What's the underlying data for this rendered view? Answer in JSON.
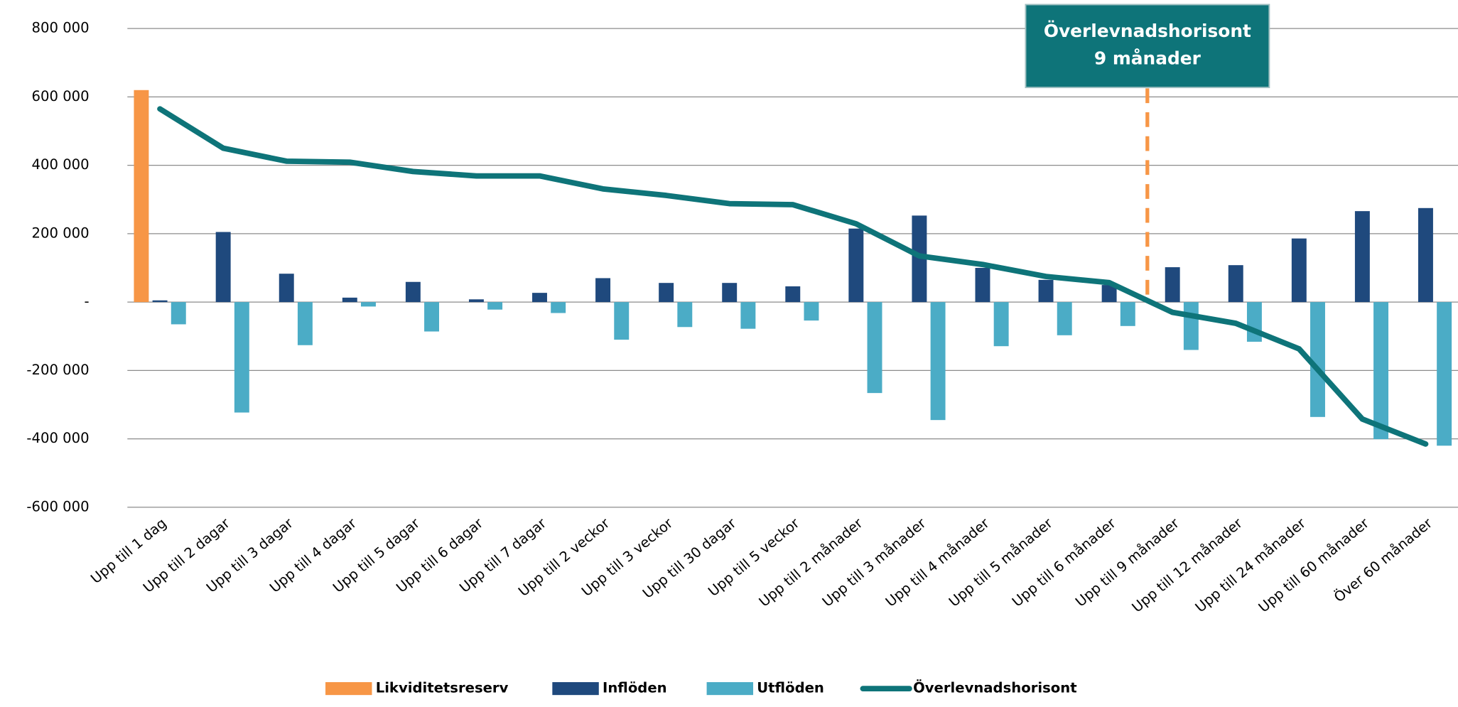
{
  "chart_data": {
    "type": "bar_line",
    "categories": [
      "Upp till 1 dag",
      "Upp till 2 dagar",
      "Upp till 3 dagar",
      "Upp till 4 dagar",
      "Upp till 5 dagar",
      "Upp till 6 dagar",
      "Upp till 7 dagar",
      "Upp till 2 veckor",
      "Upp till 3 veckor",
      "Upp till 30 dagar",
      "Upp till 5 veckor",
      "Upp till 2 månader",
      "Upp till 3 månader",
      "Upp till 4 månader",
      "Upp till 5 månader",
      "Upp till 6 månader",
      "Upp till 9 månader",
      "Upp till 12 månader",
      "Upp till 24 månader",
      "Upp till 60 månader",
      "Över 60 månader"
    ],
    "series": [
      {
        "name": "Likviditetsreserv",
        "type": "bar",
        "color": "#f79646",
        "values": [
          620000,
          null,
          null,
          null,
          null,
          null,
          null,
          null,
          null,
          null,
          null,
          null,
          null,
          null,
          null,
          null,
          null,
          null,
          null,
          null,
          null
        ]
      },
      {
        "name": "Inflöden",
        "type": "bar",
        "color": "#1f497d",
        "values": [
          5000,
          205000,
          83000,
          13000,
          59000,
          8000,
          27000,
          70000,
          56000,
          56000,
          46000,
          215000,
          253000,
          100000,
          65000,
          50000,
          102000,
          108000,
          186000,
          266000,
          275000
        ]
      },
      {
        "name": "Utflöden",
        "type": "bar",
        "color": "#4bacc6",
        "values": [
          -65000,
          -323000,
          -126000,
          -13000,
          -86000,
          -22000,
          -32000,
          -110000,
          -73000,
          -78000,
          -54000,
          -266000,
          -345000,
          -129000,
          -97000,
          -70000,
          -140000,
          -116000,
          -336000,
          -401000,
          -420000
        ]
      },
      {
        "name": "Överlevnadshorisont",
        "type": "line",
        "color": "#0e7479",
        "values": [
          565000,
          450000,
          412000,
          409000,
          382000,
          369000,
          369000,
          331000,
          312000,
          288000,
          285000,
          229000,
          135000,
          110000,
          75000,
          57000,
          -30000,
          -62000,
          -137000,
          -342000,
          -415000
        ]
      }
    ],
    "ylim": [
      -600000,
      800000
    ],
    "yticks": [
      {
        "value": -600000,
        "label": "-600 000"
      },
      {
        "value": -400000,
        "label": "-400 000"
      },
      {
        "value": -200000,
        "label": "-200 000"
      },
      {
        "value": 0,
        "label": "-"
      },
      {
        "value": 200000,
        "label": "200 000"
      },
      {
        "value": 400000,
        "label": "400 000"
      },
      {
        "value": 600000,
        "label": "600 000"
      },
      {
        "value": 800000,
        "label": "800 000"
      }
    ],
    "grid": true,
    "legend": "bottom",
    "annotation": {
      "text": [
        "Överlevnadshorisont",
        "9 månader"
      ],
      "color": "#0e7479"
    }
  }
}
